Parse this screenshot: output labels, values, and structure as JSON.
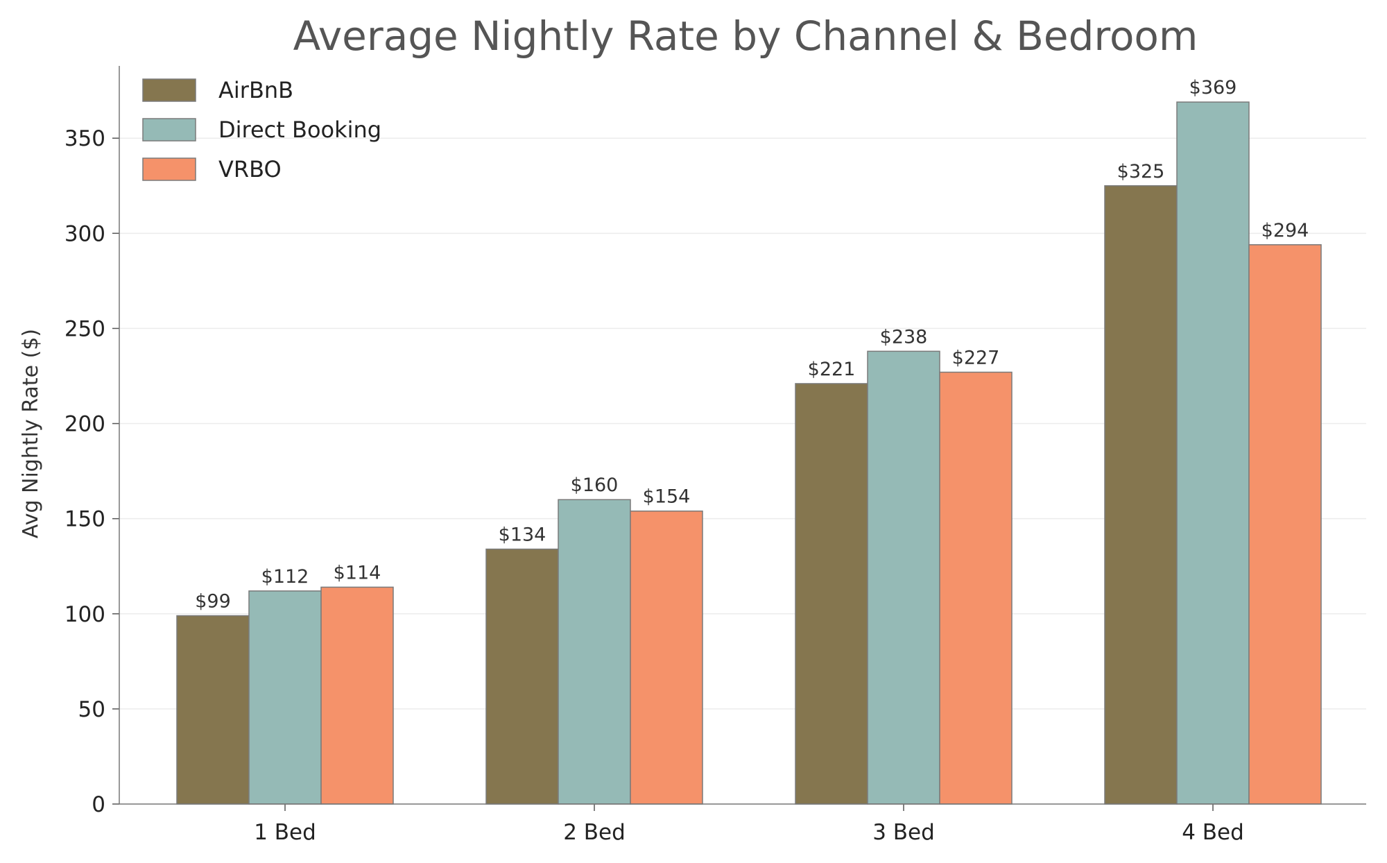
{
  "chart_data": {
    "type": "bar",
    "title": "Average Nightly Rate by Channel & Bedroom",
    "xlabel": "",
    "ylabel": "Avg Nightly Rate ($)",
    "categories": [
      "1 Bed",
      "2 Bed",
      "3 Bed",
      "4 Bed"
    ],
    "series": [
      {
        "name": "AirBnB",
        "color": "#85764f",
        "values": [
          99,
          134,
          221,
          325
        ],
        "labels": [
          "$99",
          "$134",
          "$221",
          "$325"
        ]
      },
      {
        "name": "Direct Booking",
        "color": "#95bab6",
        "values": [
          112,
          160,
          238,
          369
        ],
        "labels": [
          "$112",
          "$160",
          "$238",
          "$369"
        ]
      },
      {
        "name": "VRBO",
        "color": "#f5926a",
        "values": [
          114,
          154,
          227,
          294
        ],
        "labels": [
          "$114",
          "$154",
          "$227",
          "$294"
        ]
      }
    ],
    "ylim": [
      0,
      388
    ],
    "yticks": [
      0,
      50,
      100,
      150,
      200,
      250,
      300,
      350
    ],
    "grid": true,
    "legend_position": "top-left"
  }
}
